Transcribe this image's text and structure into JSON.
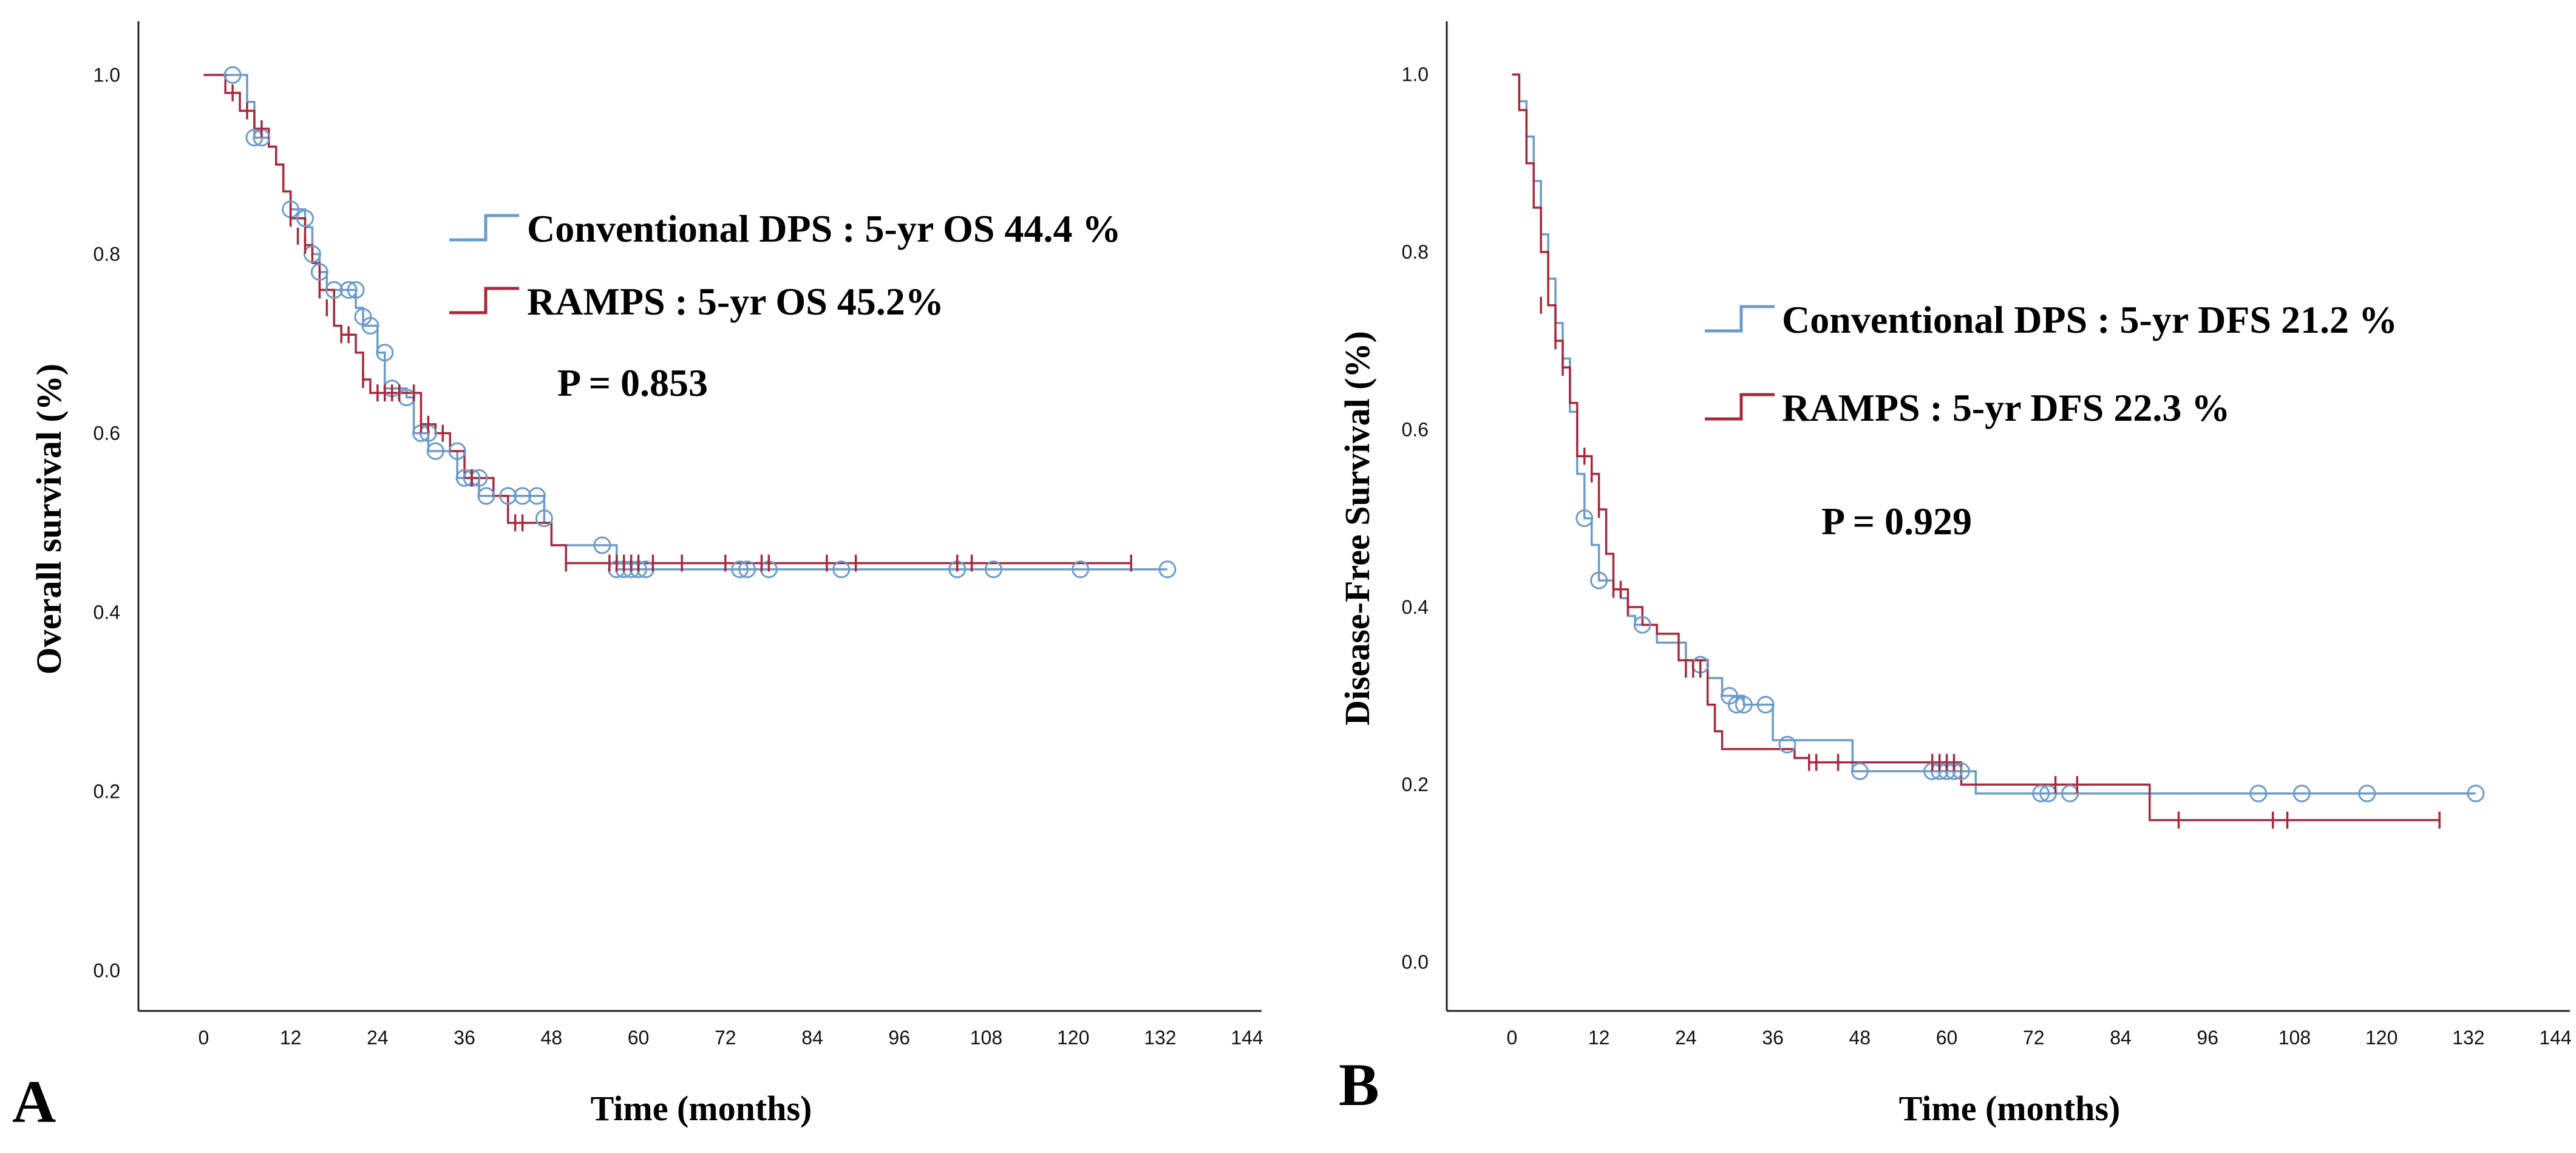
{
  "colors": {
    "conventional": "#6b9bc9",
    "ramps": "#a8283a",
    "axis": "#222222",
    "text": "#000000"
  },
  "chart_data": [
    {
      "type": "line",
      "panel_label": "A",
      "xlabel": "Time (months)",
      "ylabel": "Overall survival (%)",
      "xlim": [
        -9,
        146
      ],
      "ylim": [
        -0.045,
        1.06
      ],
      "x_ticks": [
        0,
        12,
        24,
        36,
        48,
        60,
        72,
        84,
        96,
        108,
        120,
        132,
        144
      ],
      "y_ticks": [
        0.0,
        0.2,
        0.4,
        0.6,
        0.8,
        1.0
      ],
      "x_tick_labels": [
        "0",
        "12",
        "24",
        "36",
        "48",
        "60",
        "72",
        "84",
        "96",
        "108",
        "120",
        "132",
        "144"
      ],
      "y_tick_labels": [
        "0.0",
        "0.2",
        "0.4",
        "0.6",
        "0.8",
        "1.0"
      ],
      "legend": [
        {
          "series": "conventional",
          "text": "Conventional DPS : 5-yr OS 44.4 %"
        },
        {
          "series": "ramps",
          "text": "RAMPS : 5-yr OS 45.2%"
        }
      ],
      "p_value_text": "P = 0.853",
      "series": [
        {
          "name": "Conventional DPS",
          "key": "conventional",
          "steps": [
            [
              0,
              1.0
            ],
            [
              6,
              0.97
            ],
            [
              7,
              0.93
            ],
            [
              9,
              0.92
            ],
            [
              10,
              0.9
            ],
            [
              11,
              0.87
            ],
            [
              12,
              0.85
            ],
            [
              14,
              0.83
            ],
            [
              15,
              0.8
            ],
            [
              16,
              0.78
            ],
            [
              17,
              0.76
            ],
            [
              21,
              0.74
            ],
            [
              22,
              0.72
            ],
            [
              24,
              0.69
            ],
            [
              25,
              0.65
            ],
            [
              28,
              0.64
            ],
            [
              29,
              0.6
            ],
            [
              31,
              0.58
            ],
            [
              34,
              0.58
            ],
            [
              35,
              0.55
            ],
            [
              38,
              0.53
            ],
            [
              40,
              0.53
            ],
            [
              47,
              0.5
            ],
            [
              48,
              0.475
            ],
            [
              55,
              0.475
            ],
            [
              57,
              0.448
            ],
            [
              133,
              0.448
            ]
          ],
          "censored": [
            [
              4,
              1.0
            ],
            [
              7,
              0.93
            ],
            [
              8,
              0.93
            ],
            [
              12,
              0.85
            ],
            [
              14,
              0.84
            ],
            [
              15,
              0.8
            ],
            [
              16,
              0.78
            ],
            [
              18,
              0.76
            ],
            [
              20,
              0.76
            ],
            [
              21,
              0.76
            ],
            [
              22,
              0.73
            ],
            [
              23,
              0.72
            ],
            [
              25,
              0.69
            ],
            [
              26,
              0.65
            ],
            [
              28,
              0.64
            ],
            [
              30,
              0.6
            ],
            [
              31,
              0.6
            ],
            [
              32,
              0.58
            ],
            [
              35,
              0.58
            ],
            [
              36,
              0.55
            ],
            [
              37,
              0.55
            ],
            [
              38,
              0.55
            ],
            [
              39,
              0.53
            ],
            [
              42,
              0.53
            ],
            [
              44,
              0.53
            ],
            [
              46,
              0.53
            ],
            [
              47,
              0.505
            ],
            [
              55,
              0.475
            ],
            [
              57,
              0.448
            ],
            [
              58,
              0.448
            ],
            [
              59,
              0.448
            ],
            [
              60,
              0.448
            ],
            [
              61,
              0.448
            ],
            [
              74,
              0.448
            ],
            [
              75,
              0.448
            ],
            [
              78,
              0.448
            ],
            [
              88,
              0.448
            ],
            [
              104,
              0.448
            ],
            [
              109,
              0.448
            ],
            [
              121,
              0.448
            ],
            [
              133,
              0.448
            ]
          ]
        },
        {
          "name": "RAMPS",
          "key": "ramps",
          "steps": [
            [
              0,
              1.0
            ],
            [
              3,
              0.98
            ],
            [
              5,
              0.96
            ],
            [
              7,
              0.94
            ],
            [
              9,
              0.92
            ],
            [
              10,
              0.9
            ],
            [
              11,
              0.87
            ],
            [
              12,
              0.84
            ],
            [
              14,
              0.81
            ],
            [
              15,
              0.79
            ],
            [
              16,
              0.76
            ],
            [
              18,
              0.72
            ],
            [
              19,
              0.71
            ],
            [
              21,
              0.69
            ],
            [
              22,
              0.66
            ],
            [
              23,
              0.645
            ],
            [
              30,
              0.61
            ],
            [
              32,
              0.6
            ],
            [
              34,
              0.58
            ],
            [
              36,
              0.55
            ],
            [
              40,
              0.53
            ],
            [
              42,
              0.5
            ],
            [
              48,
              0.475
            ],
            [
              50,
              0.455
            ],
            [
              128,
              0.455
            ]
          ],
          "censored": [
            [
              4,
              0.98
            ],
            [
              6,
              0.96
            ],
            [
              8,
              0.94
            ],
            [
              12,
              0.84
            ],
            [
              13,
              0.82
            ],
            [
              14,
              0.81
            ],
            [
              16,
              0.76
            ],
            [
              17,
              0.74
            ],
            [
              19,
              0.71
            ],
            [
              20,
              0.71
            ],
            [
              22,
              0.66
            ],
            [
              24,
              0.645
            ],
            [
              25,
              0.645
            ],
            [
              26,
              0.645
            ],
            [
              27,
              0.645
            ],
            [
              29,
              0.645
            ],
            [
              30,
              0.61
            ],
            [
              31,
              0.61
            ],
            [
              33,
              0.6
            ],
            [
              37,
              0.55
            ],
            [
              43,
              0.5
            ],
            [
              44,
              0.5
            ],
            [
              50,
              0.455
            ],
            [
              56,
              0.455
            ],
            [
              57,
              0.455
            ],
            [
              58,
              0.455
            ],
            [
              59,
              0.455
            ],
            [
              60,
              0.455
            ],
            [
              62,
              0.455
            ],
            [
              66,
              0.455
            ],
            [
              72,
              0.455
            ],
            [
              77,
              0.455
            ],
            [
              78,
              0.455
            ],
            [
              86,
              0.455
            ],
            [
              90,
              0.455
            ],
            [
              104,
              0.455
            ],
            [
              106,
              0.455
            ],
            [
              128,
              0.455
            ]
          ]
        }
      ]
    },
    {
      "type": "line",
      "panel_label": "B",
      "xlabel": "Time (months)",
      "ylabel": "Disease-Free Survival (%)",
      "xlim": [
        -9,
        146
      ],
      "ylim": [
        -0.055,
        1.06
      ],
      "x_ticks": [
        0,
        12,
        24,
        36,
        48,
        60,
        72,
        84,
        96,
        108,
        120,
        132,
        144
      ],
      "y_ticks": [
        0.0,
        0.2,
        0.4,
        0.6,
        0.8,
        1.0
      ],
      "x_tick_labels": [
        "0",
        "12",
        "24",
        "36",
        "48",
        "60",
        "72",
        "84",
        "96",
        "108",
        "120",
        "132",
        "144"
      ],
      "y_tick_labels": [
        "0.0",
        "0.2",
        "0.4",
        "0.6",
        "0.8",
        "1.0"
      ],
      "legend": [
        {
          "series": "conventional",
          "text": "Conventional DPS : 5-yr DFS 21.2 %"
        },
        {
          "series": "ramps",
          "text": "RAMPS : 5-yr DFS 22.3 %"
        }
      ],
      "p_value_text": "P  = 0.929",
      "series": [
        {
          "name": "Conventional DPS",
          "key": "conventional",
          "steps": [
            [
              0,
              1.0
            ],
            [
              1,
              0.97
            ],
            [
              2,
              0.93
            ],
            [
              3,
              0.88
            ],
            [
              4,
              0.82
            ],
            [
              5,
              0.77
            ],
            [
              6,
              0.72
            ],
            [
              7,
              0.68
            ],
            [
              8,
              0.62
            ],
            [
              9,
              0.55
            ],
            [
              10,
              0.5
            ],
            [
              11,
              0.47
            ],
            [
              12,
              0.43
            ],
            [
              14,
              0.42
            ],
            [
              15,
              0.41
            ],
            [
              16,
              0.39
            ],
            [
              17,
              0.38
            ],
            [
              20,
              0.36
            ],
            [
              24,
              0.34
            ],
            [
              27,
              0.32
            ],
            [
              29,
              0.3
            ],
            [
              32,
              0.29
            ],
            [
              36,
              0.25
            ],
            [
              47,
              0.215
            ],
            [
              62,
              0.215
            ],
            [
              64,
              0.19
            ],
            [
              133,
              0.19
            ]
          ],
          "censored": [
            [
              10,
              0.5
            ],
            [
              12,
              0.43
            ],
            [
              18,
              0.38
            ],
            [
              26,
              0.335
            ],
            [
              30,
              0.3
            ],
            [
              31,
              0.29
            ],
            [
              32,
              0.29
            ],
            [
              35,
              0.29
            ],
            [
              38,
              0.245
            ],
            [
              48,
              0.215
            ],
            [
              58,
              0.215
            ],
            [
              59,
              0.215
            ],
            [
              60,
              0.215
            ],
            [
              61,
              0.215
            ],
            [
              62,
              0.215
            ],
            [
              73,
              0.19
            ],
            [
              74,
              0.19
            ],
            [
              77,
              0.19
            ],
            [
              103,
              0.19
            ],
            [
              109,
              0.19
            ],
            [
              118,
              0.19
            ],
            [
              133,
              0.19
            ]
          ]
        },
        {
          "name": "RAMPS",
          "key": "ramps",
          "steps": [
            [
              0,
              1.0
            ],
            [
              1,
              0.96
            ],
            [
              2,
              0.9
            ],
            [
              3,
              0.85
            ],
            [
              4,
              0.8
            ],
            [
              5,
              0.74
            ],
            [
              6,
              0.7
            ],
            [
              7,
              0.67
            ],
            [
              8,
              0.63
            ],
            [
              9,
              0.57
            ],
            [
              11,
              0.55
            ],
            [
              12,
              0.51
            ],
            [
              13,
              0.46
            ],
            [
              14,
              0.42
            ],
            [
              16,
              0.4
            ],
            [
              18,
              0.38
            ],
            [
              20,
              0.37
            ],
            [
              23,
              0.34
            ],
            [
              27,
              0.29
            ],
            [
              28,
              0.26
            ],
            [
              29,
              0.24
            ],
            [
              39,
              0.23
            ],
            [
              41,
              0.225
            ],
            [
              48,
              0.225
            ],
            [
              62,
              0.2
            ],
            [
              88,
              0.16
            ],
            [
              128,
              0.16
            ]
          ],
          "censored": [
            [
              4,
              0.74
            ],
            [
              6,
              0.7
            ],
            [
              7,
              0.67
            ],
            [
              10,
              0.57
            ],
            [
              11,
              0.55
            ],
            [
              12,
              0.51
            ],
            [
              14,
              0.42
            ],
            [
              15,
              0.42
            ],
            [
              16,
              0.4
            ],
            [
              24,
              0.33
            ],
            [
              25,
              0.33
            ],
            [
              26,
              0.33
            ],
            [
              41,
              0.225
            ],
            [
              42,
              0.225
            ],
            [
              45,
              0.225
            ],
            [
              58,
              0.225
            ],
            [
              59,
              0.225
            ],
            [
              60,
              0.225
            ],
            [
              61,
              0.225
            ],
            [
              75,
              0.2
            ],
            [
              78,
              0.2
            ],
            [
              92,
              0.16
            ],
            [
              105,
              0.16
            ],
            [
              107,
              0.16
            ],
            [
              128,
              0.16
            ]
          ]
        }
      ]
    }
  ]
}
